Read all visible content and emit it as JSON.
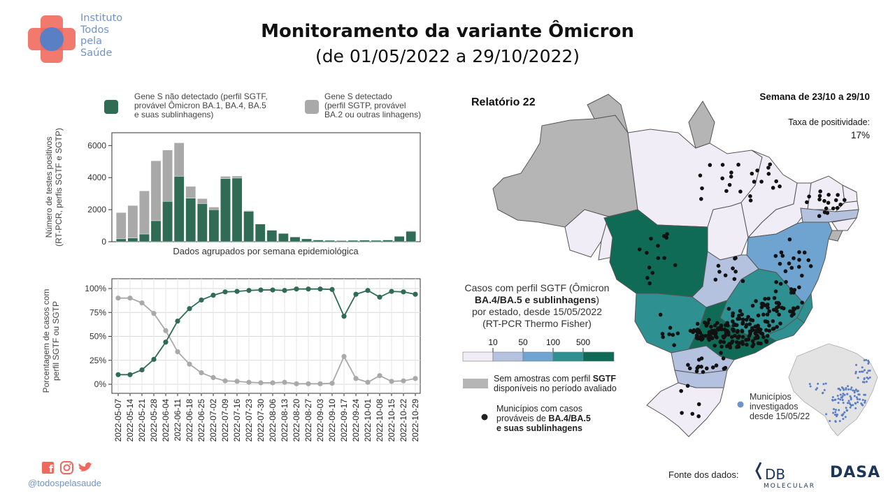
{
  "logo": {
    "line1": "Instituto",
    "line2": "Todos",
    "line3": "pela",
    "line4": "Saúde"
  },
  "title": "Monitoramento da variante Ômicron",
  "subtitle": "(de 01/05/2022 a 29/10/2022)",
  "report": "Relatório 22",
  "week": "Semana de 23/10 a 29/10",
  "positivity": {
    "label": "Taxa de positividade:",
    "value": "17%"
  },
  "legend_top": {
    "sgtf_line1": "Gene S não detectado (perfil SGTF,",
    "sgtf_line2": "provável Ômicron BA.1, BA.4, BA.5",
    "sgtf_line3": "e suas sublinhagens)",
    "sgtp_line1": "Gene S detectado",
    "sgtp_line2": "(perfil SGTP, provável",
    "sgtp_line3": "BA.2 ou outras linhagens)"
  },
  "colors": {
    "sgtf": "#2f6b55",
    "sgtp": "#a9a9a9",
    "accent_red": "#e9584e",
    "accent_blue": "#5b7fc4",
    "scale": [
      "#f1edf6",
      "#b4c1df",
      "#6fa3d0",
      "#2e9090",
      "#0f6b55"
    ],
    "nodata": "#b5b5b5"
  },
  "chart_data": [
    {
      "type": "bar",
      "stacked": true,
      "ylabel_line1": "Número de testes positivos",
      "ylabel_line2": "(RT-PCR, perfis SGTF e SGTP)",
      "xlabel": "Dados agrupados por semana epidemiológica",
      "yticks": [
        "0",
        "2000",
        "4000",
        "6000"
      ],
      "ylim": [
        0,
        6800
      ],
      "categories": [
        "2022-05-07",
        "2022-05-14",
        "2022-05-21",
        "2022-05-28",
        "2022-06-04",
        "2022-06-11",
        "2022-06-18",
        "2022-06-25",
        "2022-07-02",
        "2022-07-09",
        "2022-07-16",
        "2022-07-23",
        "2022-07-30",
        "2022-08-06",
        "2022-08-13",
        "2022-08-20",
        "2022-08-27",
        "2022-09-03",
        "2022-09-10",
        "2022-09-17",
        "2022-09-24",
        "2022-10-01",
        "2022-10-08",
        "2022-10-15",
        "2022-10-22",
        "2022-10-29"
      ],
      "series": [
        {
          "name": "Gene S não detectado (perfil SGTF, provável Ômicron BA.1, BA.4, BA.5 e suas sublinhagens)",
          "values": [
            180,
            230,
            480,
            1310,
            2520,
            4080,
            2720,
            2380,
            2000,
            3940,
            3970,
            1900,
            1100,
            720,
            520,
            300,
            180,
            110,
            90,
            70,
            90,
            100,
            90,
            110,
            340,
            650
          ]
        },
        {
          "name": "Gene S detectado (perfil SGTP, provável BA.2 ou outras linhagens)",
          "values": [
            1640,
            2030,
            2690,
            3740,
            3200,
            2090,
            730,
            310,
            160,
            140,
            130,
            40,
            20,
            10,
            10,
            5,
            5,
            5,
            5,
            30,
            10,
            5,
            10,
            5,
            10,
            30
          ]
        }
      ]
    },
    {
      "type": "line",
      "ylabel_line1": "Porcentagem de casos com",
      "ylabel_line2": "perfil SGTF ou SGTP",
      "yticks": [
        "0%",
        "25%",
        "50%",
        "75%",
        "100%"
      ],
      "ylim": [
        0,
        105
      ],
      "categories": [
        "2022-05-07",
        "2022-05-14",
        "2022-05-21",
        "2022-05-28",
        "2022-06-04",
        "2022-06-11",
        "2022-06-18",
        "2022-06-25",
        "2022-07-02",
        "2022-07-09",
        "2022-07-16",
        "2022-07-23",
        "2022-07-30",
        "2022-08-06",
        "2022-08-13",
        "2022-08-20",
        "2022-08-27",
        "2022-09-03",
        "2022-09-10",
        "2022-09-17",
        "2022-09-24",
        "2022-10-01",
        "2022-10-08",
        "2022-10-15",
        "2022-10-22",
        "2022-10-29"
      ],
      "series": [
        {
          "name": "SGTF",
          "values": [
            10,
            10,
            15,
            26,
            44,
            66,
            79,
            88,
            93,
            96.5,
            97,
            98,
            98.5,
            98.5,
            98,
            99.5,
            99.5,
            99.5,
            99,
            71,
            94,
            98,
            91,
            97,
            96.5,
            94
          ]
        },
        {
          "name": "SGTP",
          "values": [
            90,
            90,
            85,
            74,
            56,
            34,
            21,
            12,
            7,
            3.5,
            3,
            2,
            1.5,
            1.5,
            2,
            0.5,
            0.5,
            0.5,
            1,
            29,
            6,
            2,
            9,
            3,
            3.5,
            6
          ]
        }
      ]
    }
  ],
  "map": {
    "legend_title_line1": "Casos com perfil SGTF (Ômicron",
    "legend_title_bold": "BA.4/BA.5 e sublinhagens",
    "legend_title_line3": "por estado, desde 15/05/2022",
    "legend_title_line4": "(RT-PCR Thermo Fisher)",
    "scale_labels": [
      "10",
      "50",
      "100",
      "500"
    ],
    "nodata_line1": "Sem amostras com perfil",
    "nodata_bold": "SGTF",
    "nodata_line2": "disponíveis no período avaliado",
    "dots_line1": "Municípios com casos",
    "dots_line2a": "prováveis de",
    "dots_line2b": "BA.4/BA.5",
    "dots_line3": "e suas sublinhagens",
    "muni_line1": "Municípios",
    "muni_line2": "investigados",
    "muni_line3": "desde 15/05/22"
  },
  "footer": {
    "handle": "@todospelasaude",
    "source": "Fonte dos dados:",
    "db_logo": "DB",
    "db_sub": "MOLECULAR",
    "dasa_logo": "DASA"
  }
}
